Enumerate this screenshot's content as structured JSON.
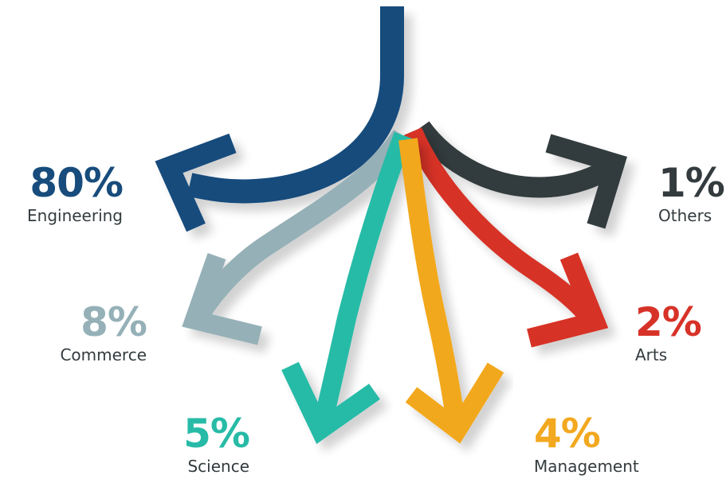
{
  "branches": [
    {
      "id": "engineering",
      "percent": "80%",
      "label": "Engineering",
      "color": "#174c7c"
    },
    {
      "id": "commerce",
      "percent": "8%",
      "label": "Commerce",
      "color": "#95b0b7"
    },
    {
      "id": "science",
      "percent": "5%",
      "label": "Science",
      "color": "#27bba7"
    },
    {
      "id": "management",
      "percent": "4%",
      "label": "Management",
      "color": "#f2a81f"
    },
    {
      "id": "arts",
      "percent": "2%",
      "label": "Arts",
      "color": "#d73228"
    },
    {
      "id": "others",
      "percent": "1%",
      "label": "Others",
      "color": "#333b3e"
    }
  ]
}
